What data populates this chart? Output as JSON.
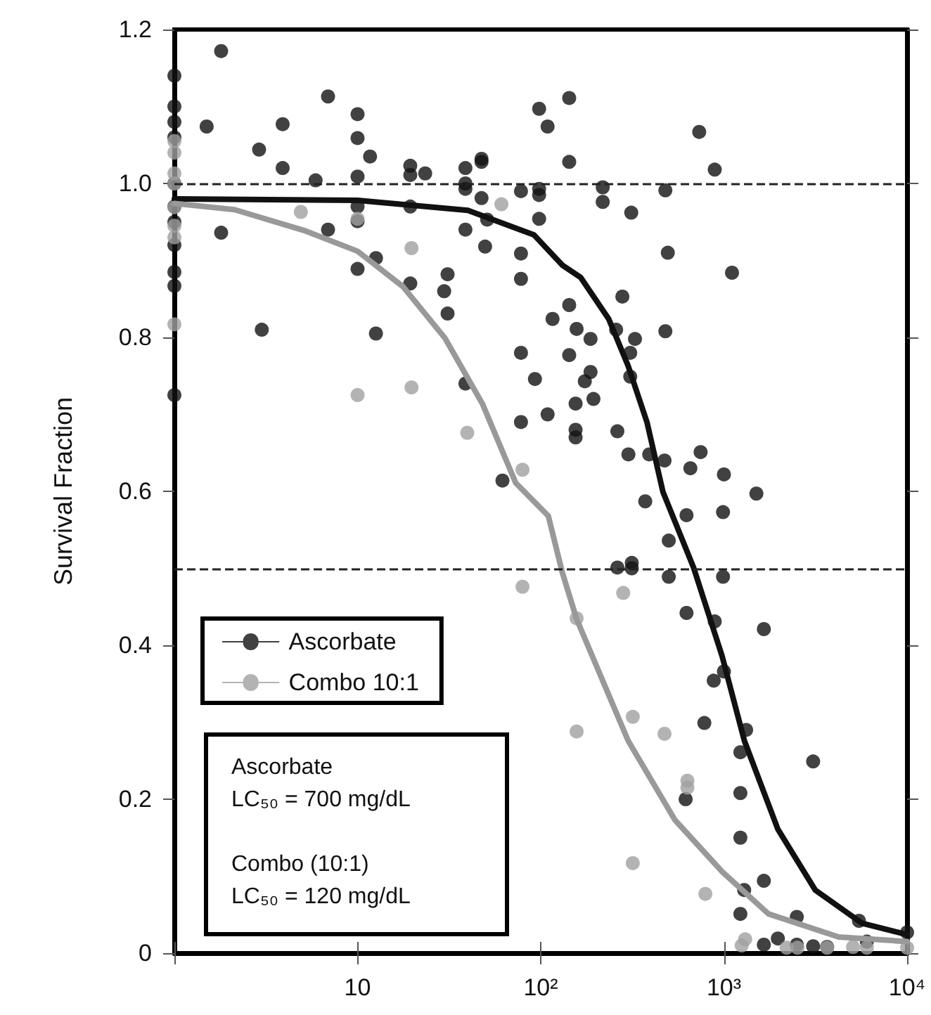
{
  "chart_data": {
    "type": "scatter",
    "ylabel": "Survival Fraction",
    "xlim": [
      1,
      10000
    ],
    "xticks": [
      {
        "value": 1,
        "label": null
      },
      10,
      {
        "value": 100,
        "label": "10²"
      },
      {
        "value": 1000,
        "label": "10³"
      },
      {
        "value": 10000,
        "label": "10⁴"
      }
    ],
    "ylim": [
      0,
      1.2
    ],
    "yticks": [
      0,
      0.2,
      0.4,
      0.6,
      0.8,
      {
        "value": 1,
        "label": "1.0"
      },
      1.2
    ],
    "log": "x",
    "grid": false,
    "legend": "bottom left",
    "marker": "circle",
    "ref_lines": [
      {
        "axis": "y",
        "value": 1,
        "line_style": "dashed",
        "color": "#222222"
      },
      {
        "axis": "y",
        "value": 0.5,
        "line_style": "dashed",
        "color": "#222222"
      }
    ],
    "annotations": [
      "Ascorbate\nLC₅₀ = 700 mg/dL",
      "Combo (10:1)\nLC₅₀ = 120 mg/dL"
    ],
    "series": [
      {
        "name": "Ascorbate",
        "color": "#111111",
        "x": [
          1,
          1,
          1,
          1,
          1,
          1,
          1,
          1,
          1,
          1,
          1,
          1.8,
          1.5,
          1.8,
          2.9,
          3,
          3.9,
          3.9,
          5.9,
          6.9,
          6.9,
          10,
          10,
          10,
          10,
          10,
          10,
          11.7,
          12.6,
          12.6,
          19.4,
          19.4,
          19.4,
          19.4,
          23.4,
          31,
          29.7,
          31,
          38.8,
          38.8,
          38.8,
          38.8,
          38.8,
          47.5,
          47.5,
          47.5,
          49.7,
          51,
          61.8,
          78,
          78,
          78,
          78,
          78,
          93,
          98,
          98,
          98,
          98,
          109,
          109,
          116,
          143,
          143,
          218,
          218,
          312,
          479,
          494,
          733,
          891,
          1107,
          279,
          143,
          157,
          187,
          258,
          327,
          308,
          143,
          187,
          174,
          308,
          194,
          155,
          155,
          155,
          262,
          479,
          301,
          391,
          474,
          746,
          656,
          1000,
          1504,
          372,
          625,
          989,
          500,
          262,
          314,
          314,
          500,
          989,
          625,
          1652,
          891,
          880,
          1000,
          782,
          1322,
          1230,
          3070,
          618,
          1230,
          1230,
          1290,
          1652,
          1230,
          2500,
          5460,
          10000,
          1970,
          1652,
          2500,
          3070,
          3660,
          6030
        ],
        "values": [
          1.14,
          1.1,
          1.08,
          1.06,
          1.0,
          0.97,
          0.95,
          0.92,
          0.885,
          0.867,
          0.725,
          1.172,
          1.074,
          0.936,
          1.044,
          0.81,
          1.077,
          1.02,
          1.004,
          1.113,
          0.94,
          1.09,
          1.059,
          1.009,
          0.97,
          0.951,
          0.889,
          1.035,
          0.903,
          0.805,
          1.023,
          1.011,
          0.97,
          0.87,
          1.013,
          0.882,
          0.86,
          0.831,
          1.02,
          1.0,
          0.993,
          0.94,
          0.74,
          1.028,
          1.032,
          0.981,
          0.918,
          0.953,
          0.614,
          0.99,
          0.909,
          0.876,
          0.78,
          0.69,
          0.746,
          1.097,
          0.993,
          0.985,
          0.954,
          1.074,
          0.7,
          0.824,
          1.111,
          1.028,
          0.995,
          0.976,
          0.962,
          0.991,
          0.91,
          1.067,
          1.018,
          0.884,
          0.853,
          0.842,
          0.811,
          0.798,
          0.81,
          0.798,
          0.78,
          0.777,
          0.755,
          0.743,
          0.749,
          0.72,
          0.714,
          0.68,
          0.67,
          0.678,
          0.808,
          0.648,
          0.648,
          0.64,
          0.651,
          0.63,
          0.622,
          0.597,
          0.587,
          0.569,
          0.573,
          0.536,
          0.501,
          0.507,
          0.5,
          0.489,
          0.489,
          0.442,
          0.421,
          0.431,
          0.354,
          0.366,
          0.299,
          0.29,
          0.261,
          0.249,
          0.2,
          0.208,
          0.15,
          0.082,
          0.094,
          0.051,
          0.047,
          0.042,
          0.027,
          0.019,
          0.011,
          0.011,
          0.009,
          0.008,
          0.015
        ]
      },
      {
        "name": "Combo 10:1",
        "color": "#a0a0a0",
        "x": [
          1,
          1,
          1,
          1,
          1,
          1,
          1,
          1,
          4.9,
          10,
          19.7,
          10,
          19.7,
          39.7,
          61,
          79.5,
          79.5,
          282,
          157,
          157,
          318,
          474,
          632,
          632,
          318,
          792,
          1306,
          1250,
          2200,
          2520,
          3660,
          5070,
          6030,
          10000
        ],
        "values": [
          1.055,
          1.04,
          1.013,
          1.0,
          0.969,
          0.945,
          0.93,
          0.817,
          0.963,
          0.954,
          0.916,
          0.725,
          0.735,
          0.676,
          0.973,
          0.628,
          0.476,
          0.468,
          0.435,
          0.288,
          0.307,
          0.285,
          0.224,
          0.215,
          0.117,
          0.077,
          0.018,
          0.01,
          0.007,
          0.007,
          0.007,
          0.008,
          0.007,
          0.007
        ]
      },
      {
        "type": "line",
        "marker": "none",
        "color": "#111111",
        "x": [
          1,
          10,
          40,
          92,
          131,
          165,
          235,
          300,
          380,
          465,
          683,
          977,
          1293,
          1970,
          3150,
          5660,
          10000
        ],
        "values": [
          0.98,
          0.978,
          0.965,
          0.933,
          0.894,
          0.878,
          0.824,
          0.763,
          0.69,
          0.599,
          0.501,
          0.386,
          0.276,
          0.161,
          0.082,
          0.039,
          0.024
        ]
      },
      {
        "type": "line",
        "marker": "none",
        "color": "#999999",
        "x": [
          1,
          2.13,
          5.1,
          10,
          17.7,
          30,
          48,
          73,
          110,
          131,
          157,
          300,
          540,
          977,
          1750,
          4230,
          10000
        ],
        "values": [
          0.974,
          0.966,
          0.939,
          0.912,
          0.866,
          0.799,
          0.714,
          0.611,
          0.568,
          0.495,
          0.434,
          0.276,
          0.173,
          0.106,
          0.051,
          0.021,
          0.015
        ]
      }
    ]
  }
}
